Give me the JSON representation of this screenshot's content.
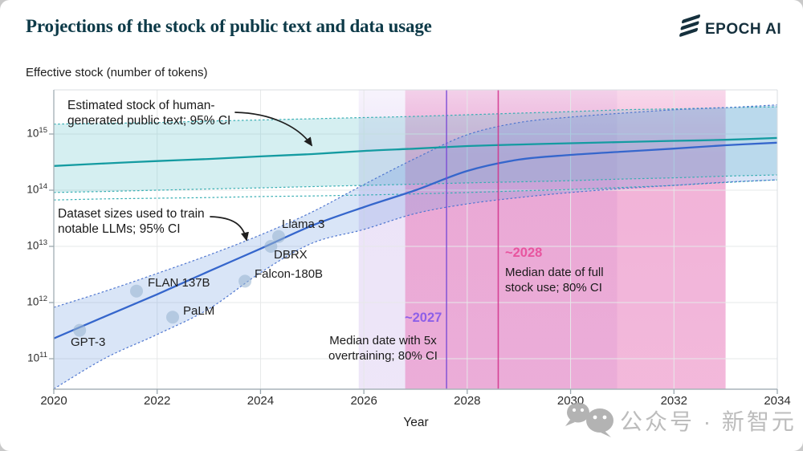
{
  "header": {
    "title": "Projections of the stock of public text and data usage",
    "logo_text": "EPOCH AI"
  },
  "watermark": {
    "text": "公众号 · 新智元"
  },
  "annotations": {
    "stock_label": "Estimated stock of human-\ngenerated public text; 95% CI",
    "dataset_label": "Dataset sizes used to train\nnotable LLMs; 95% CI",
    "overtrain_desc": "Median date with 5x\novertraining; 80% CI",
    "fullstock_desc": "Median date of full\nstock use; 80% CI"
  },
  "chart_data": {
    "type": "line",
    "title": "Projections of the stock of public text and data usage",
    "xlabel": "Year",
    "ylabel": "Effective stock (number of tokens)",
    "xlim": [
      2020,
      2034
    ],
    "x_ticks": [
      2020,
      2022,
      2024,
      2026,
      2028,
      2030,
      2032,
      2034
    ],
    "y_ticks_exponents": [
      11,
      12,
      13,
      14,
      15
    ],
    "y_tick_base": "10",
    "y_scale": "log10",
    "ylim": [
      30000000000.0,
      6000000000000000.0
    ],
    "grid": true,
    "legend_position": "none",
    "years": [
      2020,
      2021,
      2022,
      2023,
      2024,
      2025,
      2026,
      2027,
      2028,
      2029,
      2030,
      2031,
      2032,
      2033,
      2034
    ],
    "series": [
      {
        "id": "stock_median",
        "name": "Estimated stock of human-generated public text (median)",
        "style": "solid",
        "color": "#149ba1",
        "values": [
          270000000000000.0,
          300000000000000.0,
          330000000000000.0,
          360000000000000.0,
          400000000000000.0,
          440000000000000.0,
          500000000000000.0,
          550000000000000.0,
          610000000000000.0,
          650000000000000.0,
          685000000000000.0,
          720000000000000.0,
          755000000000000.0,
          790000000000000.0,
          850000000000000.0
        ]
      },
      {
        "id": "stock_ci_upper",
        "name": "Stock of public text, 95% CI upper",
        "style": "dashed",
        "color": "#38aeb3",
        "values": [
          1500000000000000.0,
          1550000000000000.0,
          1600000000000000.0,
          1700000000000000.0,
          1780000000000000.0,
          1870000000000000.0,
          1960000000000000.0,
          2060000000000000.0,
          2200000000000000.0,
          2350000000000000.0,
          2500000000000000.0,
          2700000000000000.0,
          2800000000000000.0,
          2950000000000000.0,
          3050000000000000.0
        ]
      },
      {
        "id": "stock_ci_lower",
        "name": "Stock of public text, 95% CI lower",
        "style": "dashed",
        "color": "#38aeb3",
        "values": [
          91000000000000.0,
          95000000000000.0,
          100000000000000.0,
          105000000000000.0,
          110000000000000.0,
          116000000000000.0,
          122000000000000.0,
          128000000000000.0,
          135000000000000.0,
          141000000000000.0,
          148000000000000.0,
          158000000000000.0,
          166000000000000.0,
          178000000000000.0,
          187000000000000.0
        ]
      },
      {
        "id": "stock_ci_lower_b",
        "name": "Stock of public text, outer CI lower",
        "style": "dashed",
        "color": "#38aeb3",
        "values": [
          67000000000000.0,
          70000000000000.0,
          72000000000000.0,
          74000000000000.0,
          77000000000000.0,
          79000000000000.0,
          82000000000000.0,
          86000000000000.0,
          91000000000000.0,
          97000000000000.0,
          103000000000000.0,
          112000000000000.0,
          122000000000000.0,
          137000000000000.0,
          153000000000000.0
        ]
      },
      {
        "id": "dataset_median",
        "name": "Dataset sizes used to train notable LLMs (median projection)",
        "style": "solid",
        "color": "#3566cc",
        "values": [
          230000000000.0,
          570000000000.0,
          1400000000000.0,
          3600000000000.0,
          9100000000000.0,
          23500000000000.0,
          50000000000000.0,
          100000000000000.0,
          220000000000000.0,
          350000000000000.0,
          425000000000000.0,
          485000000000000.0,
          550000000000000.0,
          630000000000000.0,
          700000000000000.0
        ]
      },
      {
        "id": "dataset_ci_upper",
        "name": "Dataset sizes, 95% CI upper",
        "style": "dashed",
        "color": "#5077d0",
        "values": [
          820000000000.0,
          1600000000000.0,
          3300000000000.0,
          7000000000000.0,
          16000000000000.0,
          41000000000000.0,
          126000000000000.0,
          370000000000000.0,
          970000000000000.0,
          1600000000000000.0,
          2000000000000000.0,
          2350000000000000.0,
          2700000000000000.0,
          2950000000000000.0,
          3300000000000000.0
        ]
      },
      {
        "id": "dataset_ci_lower",
        "name": "Dataset sizes, 95% CI lower",
        "style": "dashed",
        "color": "#5077d0",
        "values": [
          29000000000.0,
          103000000000.0,
          270000000000.0,
          770000000000.0,
          3400000000000.0,
          11400000000000.0,
          20000000000000.0,
          38500000000000.0,
          57000000000000.0,
          74000000000000.0,
          91000000000000.0,
          107000000000000.0,
          122000000000000.0,
          139000000000000.0,
          153000000000000.0
        ]
      }
    ],
    "bands": [
      {
        "upper": "stock_ci_upper",
        "lower": "stock_ci_lower",
        "fill": "rgba(92,192,200,0.26)"
      },
      {
        "upper": "dataset_ci_upper",
        "lower": "dataset_ci_lower",
        "fill": "rgba(108,156,224,0.26)"
      }
    ],
    "points": [
      {
        "label": "GPT-3",
        "year": 2020.5,
        "tokens": 320000000000.0
      },
      {
        "label": "FLAN 137B",
        "year": 2021.6,
        "tokens": 1600000000000.0
      },
      {
        "label": "PaLM",
        "year": 2022.3,
        "tokens": 550000000000.0
      },
      {
        "label": "Falcon-180B",
        "year": 2023.7,
        "tokens": 2400000000000.0
      },
      {
        "label": "DBRX",
        "year": 2024.2,
        "tokens": 10000000000000.0
      },
      {
        "label": "Llama 3",
        "year": 2024.35,
        "tokens": 15000000000000.0
      }
    ],
    "events": [
      {
        "id": "overtrain",
        "label": "~2027",
        "desc": "Median date with 5x overtraining; 80% CI",
        "median_year": 2027.6,
        "ci_years": [
          2025.9,
          2030.9
        ],
        "line_color": "#7a4bd6",
        "label_color": "#8d5fe8",
        "band_rgb": "214,196,240",
        "band_alpha": [
          0.2,
          0.46
        ]
      },
      {
        "id": "fullstock",
        "label": "~2028",
        "desc": "Median date of full stock use; 80% CI",
        "median_year": 2028.6,
        "ci_years": [
          2026.8,
          2033.0
        ],
        "line_color": "#d2308a",
        "label_color": "#e8559f",
        "band_rgb": "233,128,190",
        "band_alpha": [
          0.3,
          0.6
        ]
      }
    ]
  }
}
